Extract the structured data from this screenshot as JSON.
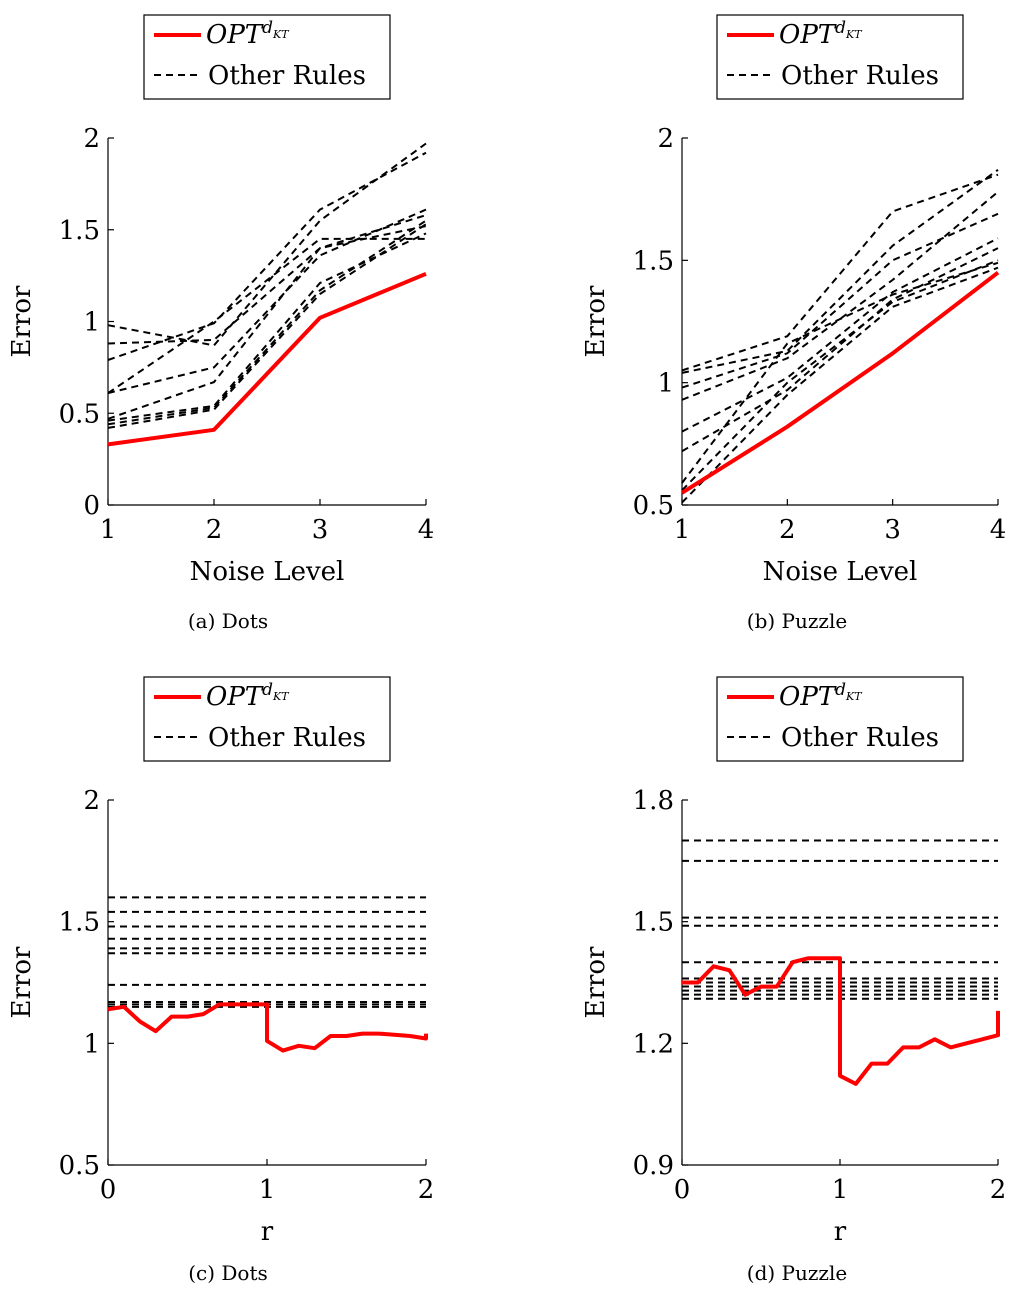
{
  "legend": {
    "opt_base": "OPT",
    "opt_sup": "d",
    "opt_sub": "KT",
    "other_label": "Other Rules"
  },
  "colors": {
    "opt": "#ff0000",
    "other": "#000000"
  },
  "chart_data": [
    {
      "type": "line",
      "caption": "(a) Dots",
      "xlabel": "Noise Level",
      "ylabel": "Error",
      "xlim": [
        1,
        4
      ],
      "ylim": [
        0,
        2
      ],
      "xticks": [
        1,
        2,
        3,
        4
      ],
      "yticks": [
        0,
        0.5,
        1,
        1.5,
        2
      ],
      "ytick_labels": [
        "0",
        "0.5",
        "1",
        "1.5",
        "2"
      ],
      "x": [
        1,
        2,
        3,
        4
      ],
      "opt": [
        0.33,
        0.41,
        1.02,
        1.26
      ],
      "other_series": [
        [
          0.98,
          0.87,
          1.55,
          1.97
        ],
        [
          0.79,
          0.99,
          1.61,
          1.92
        ],
        [
          0.88,
          0.9,
          1.4,
          1.58
        ],
        [
          0.61,
          1.0,
          1.45,
          1.45
        ],
        [
          0.61,
          0.75,
          1.36,
          1.61
        ],
        [
          0.47,
          0.67,
          1.4,
          1.52
        ],
        [
          0.46,
          0.54,
          1.21,
          1.48
        ],
        [
          0.44,
          0.53,
          1.17,
          1.55
        ],
        [
          0.42,
          0.52,
          1.15,
          1.53
        ]
      ]
    },
    {
      "type": "line",
      "caption": "(b) Puzzle",
      "xlabel": "Noise Level",
      "ylabel": "Error",
      "xlim": [
        1,
        4
      ],
      "ylim": [
        0.5,
        2
      ],
      "xticks": [
        1,
        2,
        3,
        4
      ],
      "yticks": [
        0.5,
        1,
        1.5,
        2
      ],
      "ytick_labels": [
        "0.5",
        "1",
        "1.5",
        "2"
      ],
      "x": [
        1,
        2,
        3,
        4
      ],
      "opt": [
        0.55,
        0.82,
        1.12,
        1.45
      ],
      "other_series": [
        [
          1.05,
          1.19,
          1.7,
          1.85
        ],
        [
          1.04,
          1.13,
          1.56,
          1.87
        ],
        [
          0.98,
          1.12,
          1.5,
          1.69
        ],
        [
          0.93,
          1.1,
          1.42,
          1.78
        ],
        [
          0.8,
          1.02,
          1.37,
          1.59
        ],
        [
          0.72,
          0.97,
          1.34,
          1.55
        ],
        [
          0.59,
          1.16,
          1.36,
          1.49
        ],
        [
          0.56,
          1.0,
          1.33,
          1.5
        ],
        [
          0.51,
          0.95,
          1.31,
          1.47
        ]
      ]
    },
    {
      "type": "line",
      "caption": "(c) Dots",
      "xlabel": "r",
      "ylabel": "Error",
      "xlim": [
        0,
        2
      ],
      "ylim": [
        0.5,
        2
      ],
      "xticks": [
        0,
        1,
        2
      ],
      "yticks": [
        0.5,
        1,
        1.5,
        2
      ],
      "ytick_labels": [
        "0.5",
        "1",
        "1.5",
        "2"
      ],
      "x": [
        0,
        0.1,
        0.2,
        0.3,
        0.4,
        0.5,
        0.6,
        0.7,
        0.8,
        0.9,
        1.0,
        1.0,
        1.1,
        1.2,
        1.3,
        1.4,
        1.5,
        1.6,
        1.7,
        1.8,
        1.9,
        2.0,
        2.0
      ],
      "opt": [
        1.14,
        1.15,
        1.09,
        1.05,
        1.11,
        1.11,
        1.12,
        1.16,
        1.16,
        1.16,
        1.16,
        1.01,
        0.97,
        0.99,
        0.98,
        1.03,
        1.03,
        1.04,
        1.04,
        1.035,
        1.03,
        1.02,
        1.04
      ],
      "other_levels": [
        1.6,
        1.54,
        1.48,
        1.43,
        1.39,
        1.37,
        1.24,
        1.17,
        1.16,
        1.15
      ]
    },
    {
      "type": "line",
      "caption": "(d) Puzzle",
      "xlabel": "r",
      "ylabel": "Error",
      "xlim": [
        0,
        2
      ],
      "ylim": [
        0.9,
        1.8
      ],
      "xticks": [
        0,
        1,
        2
      ],
      "yticks": [
        0.9,
        1.2,
        1.5,
        1.8
      ],
      "ytick_labels": [
        "0.9",
        "1.2",
        "1.5",
        "1.8"
      ],
      "x": [
        0,
        0.1,
        0.2,
        0.3,
        0.4,
        0.5,
        0.6,
        0.7,
        0.8,
        0.9,
        1.0,
        1.0,
        1.1,
        1.2,
        1.3,
        1.4,
        1.5,
        1.6,
        1.7,
        1.8,
        1.9,
        2.0,
        2.0
      ],
      "opt": [
        1.35,
        1.35,
        1.39,
        1.38,
        1.32,
        1.34,
        1.34,
        1.4,
        1.41,
        1.41,
        1.41,
        1.12,
        1.1,
        1.15,
        1.15,
        1.19,
        1.19,
        1.21,
        1.19,
        1.2,
        1.21,
        1.22,
        1.28
      ],
      "other_levels": [
        1.7,
        1.65,
        1.51,
        1.49,
        1.4,
        1.36,
        1.35,
        1.34,
        1.33,
        1.32,
        1.31
      ]
    }
  ]
}
